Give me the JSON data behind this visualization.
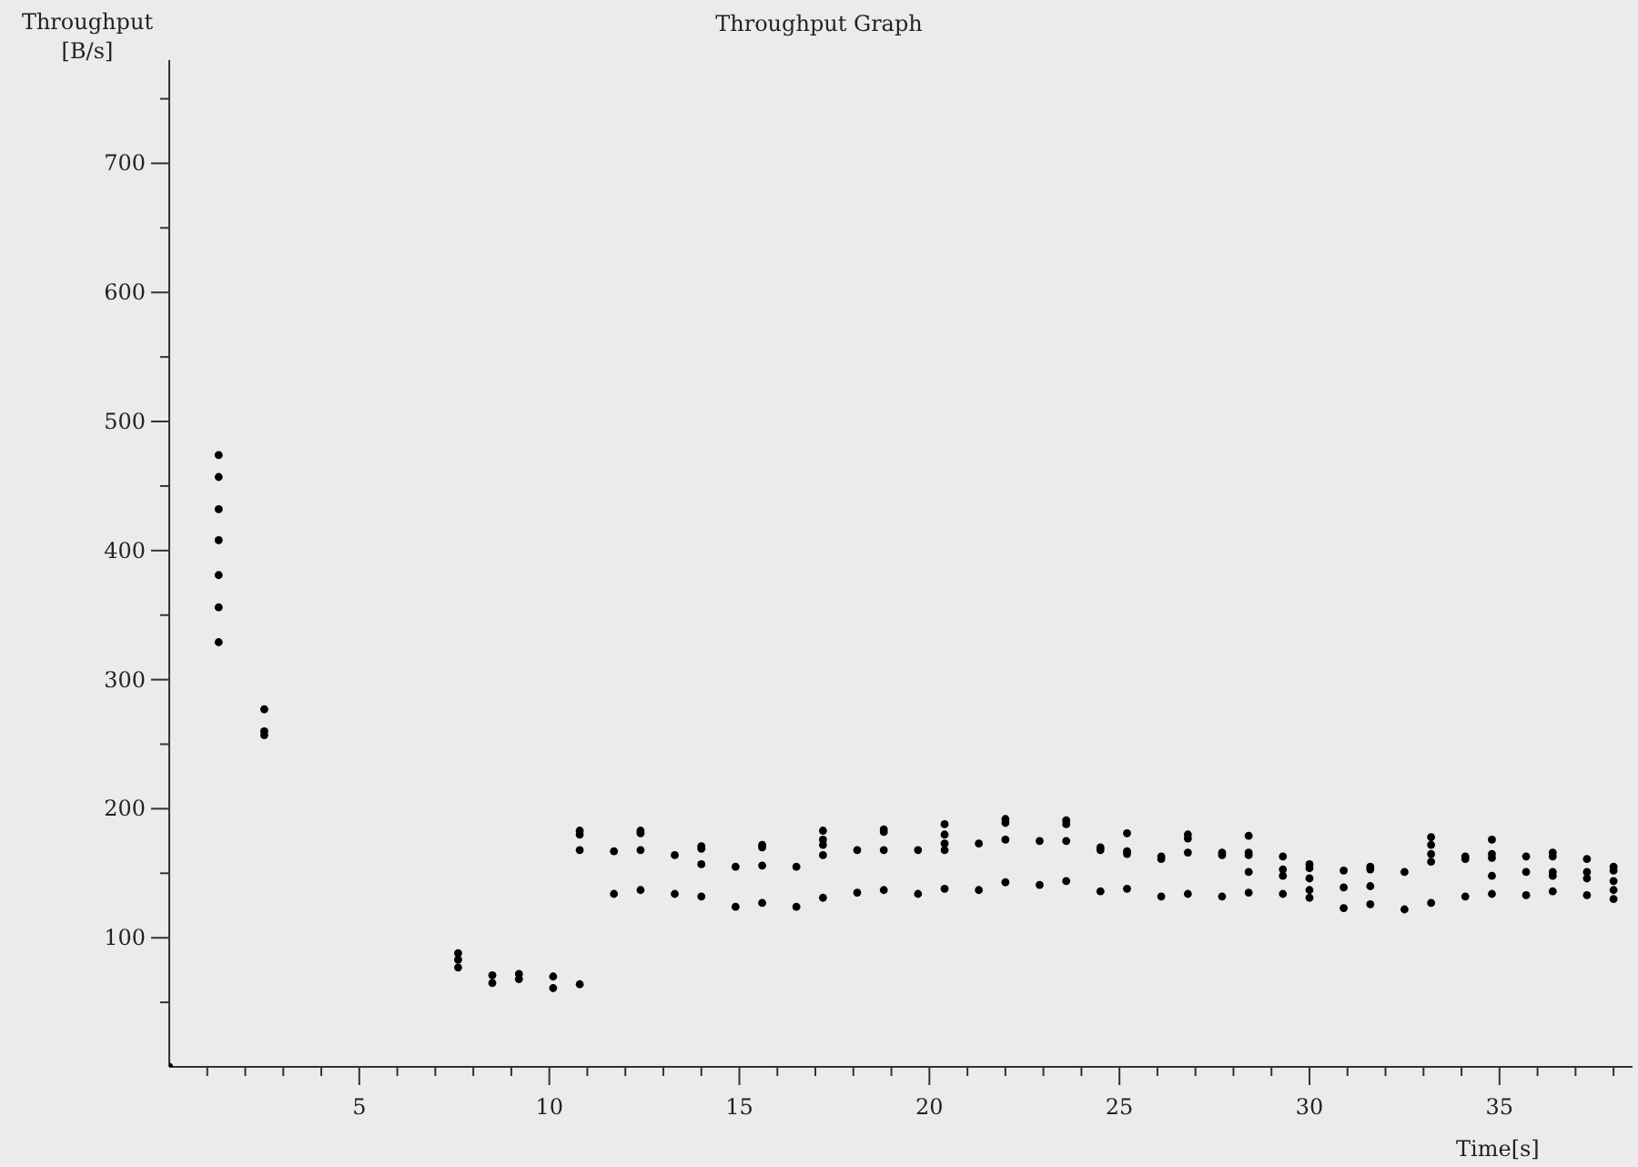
{
  "chart_data": {
    "type": "scatter",
    "title": "Throughput Graph",
    "xlabel": "Time[s]",
    "ylabel": "Throughput [B/s]",
    "x": [
      0,
      1.3,
      1.3,
      1.3,
      1.3,
      1.3,
      1.3,
      1.3,
      2.5,
      2.5,
      2.5,
      7.6,
      7.6,
      7.6,
      8.5,
      8.5,
      9.2,
      9.2,
      10.1,
      10.1,
      10.8,
      10.8,
      10.8,
      10.8,
      11.7,
      11.7,
      12.4,
      12.4,
      12.4,
      12.4,
      13.3,
      13.3,
      14.0,
      14.0,
      14.0,
      14.0,
      14.9,
      14.9,
      15.6,
      15.6,
      15.6,
      15.6,
      16.5,
      16.5,
      17.2,
      17.2,
      17.2,
      17.2,
      17.2,
      18.1,
      18.1,
      18.8,
      18.8,
      18.8,
      18.8,
      19.7,
      19.7,
      20.4,
      20.4,
      20.4,
      20.4,
      20.4,
      21.3,
      21.3,
      22.0,
      22.0,
      22.0,
      22.0,
      22.9,
      22.9,
      23.6,
      23.6,
      23.6,
      23.6,
      24.5,
      24.5,
      24.5,
      25.2,
      25.2,
      25.2,
      25.2,
      26.1,
      26.1,
      26.1,
      26.8,
      26.8,
      26.8,
      26.8,
      27.7,
      27.7,
      27.7,
      28.4,
      28.4,
      28.4,
      28.4,
      28.4,
      29.3,
      29.3,
      29.3,
      29.3,
      30.0,
      30.0,
      30.0,
      30.0,
      30.0,
      30.9,
      30.9,
      30.9,
      31.6,
      31.6,
      31.6,
      31.6,
      32.5,
      32.5,
      33.2,
      33.2,
      33.2,
      33.2,
      33.2,
      34.1,
      34.1,
      34.1,
      34.8,
      34.8,
      34.8,
      34.8,
      34.8,
      35.7,
      35.7,
      35.7,
      36.4,
      36.4,
      36.4,
      36.4,
      36.4,
      37.3,
      37.3,
      37.3,
      37.3,
      38.0,
      38.0,
      38.0,
      38.0,
      38.0
    ],
    "series": [
      {
        "color": "#000000",
        "values": [
          0,
          474,
          457,
          432,
          408,
          381,
          356,
          329,
          277,
          260,
          257,
          88,
          83,
          77,
          71,
          65,
          72,
          68,
          70,
          61,
          183,
          180,
          168,
          64,
          167,
          134,
          183,
          181,
          168,
          137,
          164,
          134,
          171,
          169,
          157,
          132,
          155,
          124,
          172,
          170,
          156,
          127,
          155,
          124,
          183,
          176,
          172,
          164,
          131,
          168,
          135,
          184,
          182,
          168,
          137,
          168,
          134,
          188,
          180,
          173,
          168,
          138,
          173,
          137,
          192,
          189,
          176,
          143,
          175,
          141,
          191,
          188,
          175,
          144,
          170,
          168,
          136,
          181,
          167,
          165,
          138,
          163,
          161,
          132,
          180,
          177,
          166,
          134,
          166,
          164,
          132,
          179,
          166,
          164,
          151,
          135,
          163,
          153,
          148,
          134,
          157,
          154,
          146,
          137,
          131,
          152,
          139,
          123,
          155,
          153,
          140,
          126,
          151,
          122,
          178,
          172,
          165,
          159,
          127,
          163,
          161,
          132,
          176,
          165,
          162,
          148,
          134,
          163,
          151,
          133,
          166,
          163,
          151,
          148,
          136,
          161,
          151,
          146,
          133,
          155,
          152,
          144,
          137,
          130
        ]
      }
    ],
    "marker": "circle",
    "xlim": [
      0,
      38.5
    ],
    "xticks": [
      {
        "value": 1,
        "label": null
      },
      {
        "value": 2,
        "label": null
      },
      {
        "value": 3,
        "label": null
      },
      {
        "value": 4,
        "label": null
      },
      5,
      {
        "value": 6,
        "label": null
      },
      {
        "value": 7,
        "label": null
      },
      {
        "value": 8,
        "label": null
      },
      {
        "value": 9,
        "label": null
      },
      10,
      {
        "value": 11,
        "label": null
      },
      {
        "value": 12,
        "label": null
      },
      {
        "value": 13,
        "label": null
      },
      {
        "value": 14,
        "label": null
      },
      15,
      {
        "value": 16,
        "label": null
      },
      {
        "value": 17,
        "label": null
      },
      {
        "value": 18,
        "label": null
      },
      {
        "value": 19,
        "label": null
      },
      20,
      {
        "value": 21,
        "label": null
      },
      {
        "value": 22,
        "label": null
      },
      {
        "value": 23,
        "label": null
      },
      {
        "value": 24,
        "label": null
      },
      25,
      {
        "value": 26,
        "label": null
      },
      {
        "value": 27,
        "label": null
      },
      {
        "value": 28,
        "label": null
      },
      {
        "value": 29,
        "label": null
      },
      30,
      {
        "value": 31,
        "label": null
      },
      {
        "value": 32,
        "label": null
      },
      {
        "value": 33,
        "label": null
      },
      {
        "value": 34,
        "label": null
      },
      35,
      {
        "value": 36,
        "label": null
      },
      {
        "value": 37,
        "label": null
      },
      {
        "value": 38,
        "label": null
      }
    ],
    "ylim": [
      0,
      780
    ],
    "yticks": [
      {
        "value": 50,
        "label": null
      },
      100,
      {
        "value": 150,
        "label": null
      },
      200,
      {
        "value": 250,
        "label": null
      },
      300,
      {
        "value": 350,
        "label": null
      },
      400,
      {
        "value": 450,
        "label": null
      },
      500,
      {
        "value": 550,
        "label": null
      },
      600,
      {
        "value": 650,
        "label": null
      },
      700,
      {
        "value": 750,
        "label": null
      }
    ]
  }
}
